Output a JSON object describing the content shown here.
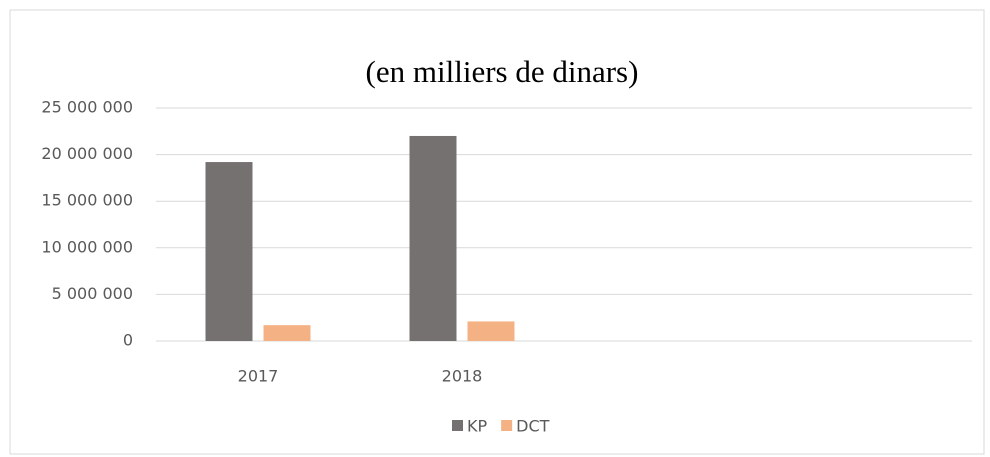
{
  "chart_data": {
    "type": "bar",
    "title": "(en milliers de dinars)",
    "categories": [
      "2017",
      "2018",
      null,
      null
    ],
    "series": [
      {
        "name": "KP",
        "color": "#767171",
        "values": [
          19200000,
          22000000,
          null,
          null
        ]
      },
      {
        "name": "DCT",
        "color": "#f4b183",
        "values": [
          1700000,
          2100000,
          null,
          null
        ]
      }
    ],
    "ylim": [
      0,
      25000000
    ],
    "yticks": [
      0,
      {
        "value": 5000000,
        "label": "5 000 000"
      },
      {
        "value": 10000000,
        "label": "10 000 000"
      },
      {
        "value": 15000000,
        "label": "15 000 000"
      },
      {
        "value": 20000000,
        "label": "20 000 000"
      },
      {
        "value": 25000000,
        "label": "25 000 000"
      }
    ],
    "grid": true,
    "legend": "bottom"
  }
}
